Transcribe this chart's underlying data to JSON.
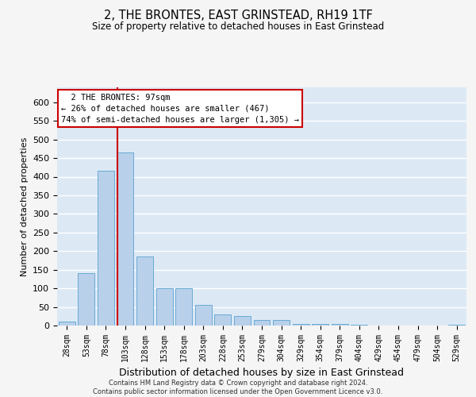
{
  "title": "2, THE BRONTES, EAST GRINSTEAD, RH19 1TF",
  "subtitle": "Size of property relative to detached houses in East Grinstead",
  "xlabel": "Distribution of detached houses by size in East Grinstead",
  "ylabel": "Number of detached properties",
  "footer_line1": "Contains HM Land Registry data © Crown copyright and database right 2024.",
  "footer_line2": "Contains public sector information licensed under the Open Government Licence v3.0.",
  "bar_labels": [
    "28sqm",
    "53sqm",
    "78sqm",
    "103sqm",
    "128sqm",
    "153sqm",
    "178sqm",
    "203sqm",
    "228sqm",
    "253sqm",
    "279sqm",
    "304sqm",
    "329sqm",
    "354sqm",
    "379sqm",
    "404sqm",
    "429sqm",
    "454sqm",
    "479sqm",
    "504sqm",
    "529sqm"
  ],
  "bar_values": [
    10,
    140,
    415,
    465,
    185,
    100,
    100,
    55,
    30,
    25,
    15,
    15,
    5,
    5,
    5,
    3,
    0,
    0,
    0,
    0,
    3
  ],
  "bar_color": "#b8d0ea",
  "bar_edge_color": "#6aaad4",
  "background_color": "#dce9f5",
  "grid_color": "#ffffff",
  "vline_x_index": 3,
  "vline_color": "#cc0000",
  "annotation_text": "  2 THE BRONTES: 97sqm\n← 26% of detached houses are smaller (467)\n74% of semi-detached houses are larger (1,305) →",
  "annotation_box_color": "#ffffff",
  "annotation_box_edge": "#cc0000",
  "ylim": [
    0,
    640
  ],
  "yticks": [
    0,
    50,
    100,
    150,
    200,
    250,
    300,
    350,
    400,
    450,
    500,
    550,
    600
  ],
  "fig_width": 6.0,
  "fig_height": 5.0,
  "dpi": 100
}
